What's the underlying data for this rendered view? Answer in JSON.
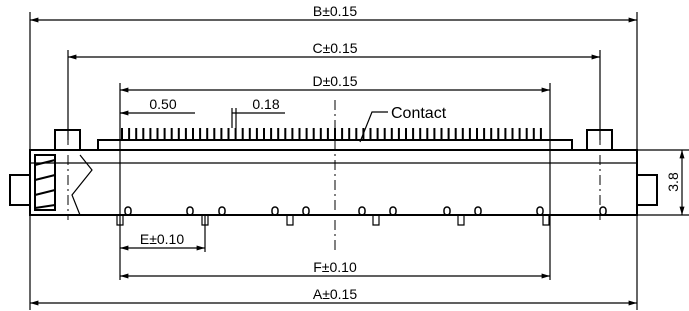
{
  "dimensions": {
    "b": "B±0.15",
    "c": "C±0.15",
    "d": "D±0.15",
    "pitch": "0.50",
    "width": "0.18",
    "e": "E±0.10",
    "f": "F±0.10",
    "a": "A±0.15",
    "height": "3.8"
  },
  "callout": "Contact"
}
